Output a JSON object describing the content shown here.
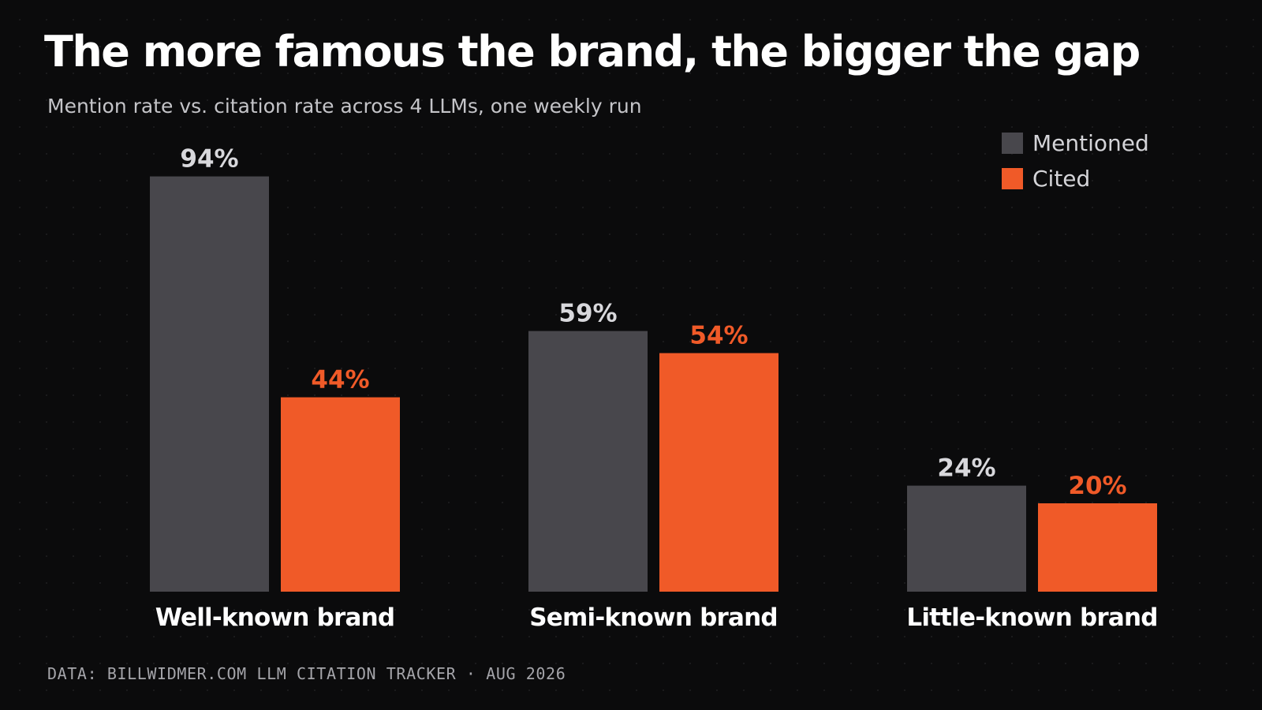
{
  "title": "The more famous the brand, the bigger the gap",
  "subtitle": "Mention rate vs. citation rate across 4 LLMs, one weekly run",
  "source": "DATA: BILLWIDMER.COM LLM CITATION TRACKER · AUG 2026",
  "colors": {
    "mentioned": "#48474c",
    "cited": "#f05a28",
    "mentioned_label": "#d8d8dc",
    "cited_label": "#f05a28",
    "category_label": "#ffffff"
  },
  "chart_data": {
    "type": "bar",
    "categories": [
      "Well-known brand",
      "Semi-known brand",
      "Little-known brand"
    ],
    "series": [
      {
        "name": "Mentioned",
        "values": [
          94,
          59,
          24
        ],
        "labels": [
          "94%",
          "59%",
          "24%"
        ]
      },
      {
        "name": "Cited",
        "values": [
          44,
          54,
          20
        ],
        "labels": [
          "44%",
          "54%",
          "20%"
        ]
      }
    ],
    "ylim": [
      0,
      100
    ],
    "grid": false,
    "legend_position": "top-right"
  }
}
